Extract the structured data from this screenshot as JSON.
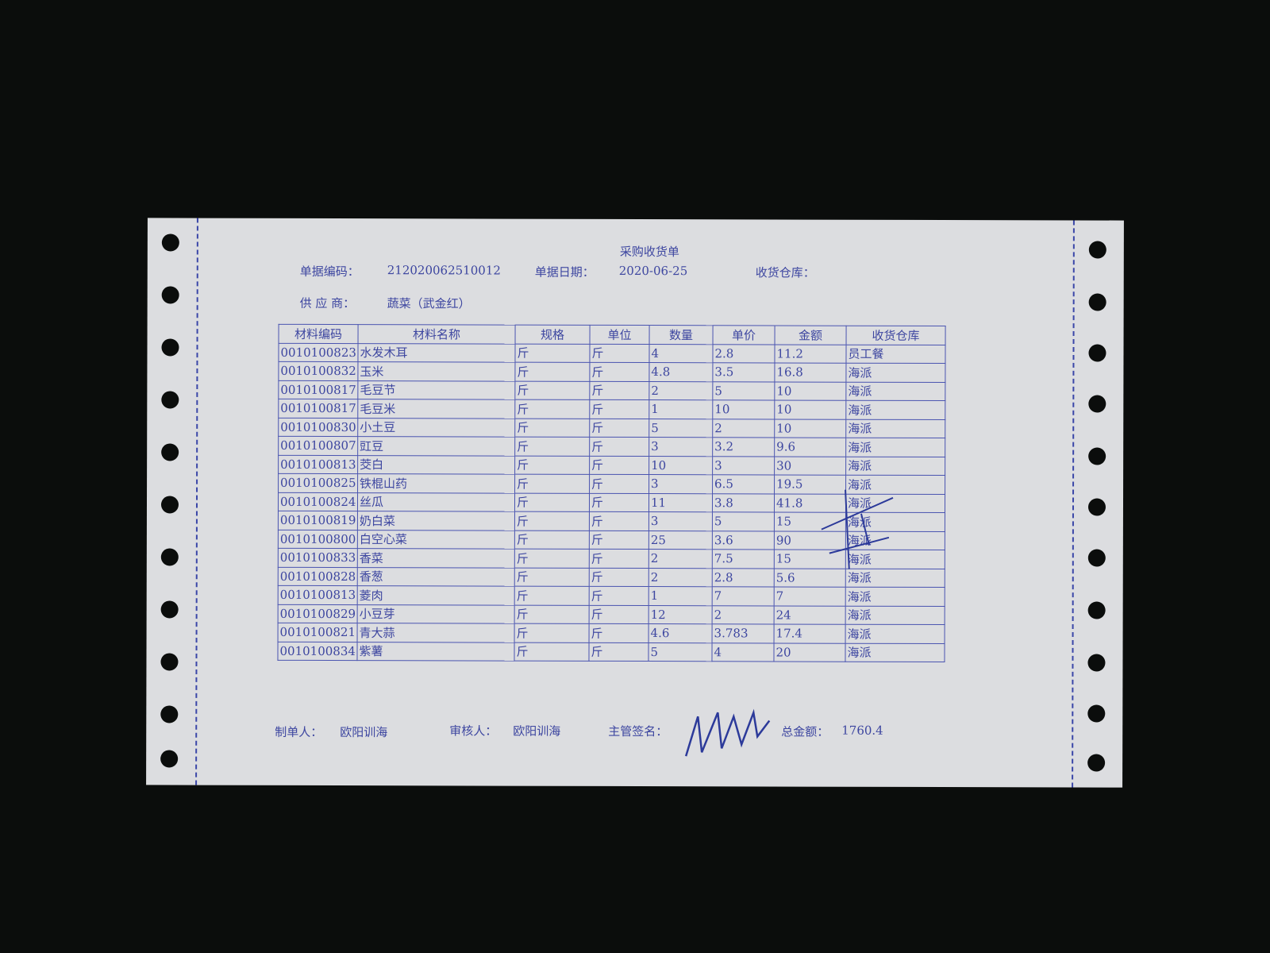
{
  "document": {
    "title": "采购收货单",
    "doc_no_label": "单据编码：",
    "doc_no": "212020062510012",
    "doc_date_label": "单据日期：",
    "doc_date": "2020-06-25",
    "warehouse_label": "收货仓库：",
    "supplier_label": "供 应 商：",
    "supplier": "蔬菜（武金红）"
  },
  "table": {
    "headers": [
      "材料编码",
      "材料名称",
      "规格",
      "单位",
      "数量",
      "单价",
      "金额",
      "收货仓库"
    ],
    "rows": [
      [
        "0010100823",
        "水发木耳",
        "斤",
        "斤",
        "4",
        "2.8",
        "11.2",
        "员工餐"
      ],
      [
        "0010100832",
        "玉米",
        "斤",
        "斤",
        "4.8",
        "3.5",
        "16.8",
        "海派"
      ],
      [
        "0010100817",
        "毛豆节",
        "斤",
        "斤",
        "2",
        "5",
        "10",
        "海派"
      ],
      [
        "0010100817",
        "毛豆米",
        "斤",
        "斤",
        "1",
        "10",
        "10",
        "海派"
      ],
      [
        "0010100830",
        "小土豆",
        "斤",
        "斤",
        "5",
        "2",
        "10",
        "海派"
      ],
      [
        "0010100807",
        "豇豆",
        "斤",
        "斤",
        "3",
        "3.2",
        "9.6",
        "海派"
      ],
      [
        "0010100813",
        "茭白",
        "斤",
        "斤",
        "10",
        "3",
        "30",
        "海派"
      ],
      [
        "0010100825",
        "铁棍山药",
        "斤",
        "斤",
        "3",
        "6.5",
        "19.5",
        "海派"
      ],
      [
        "0010100824",
        "丝瓜",
        "斤",
        "斤",
        "11",
        "3.8",
        "41.8",
        "海派"
      ],
      [
        "0010100819",
        "奶白菜",
        "斤",
        "斤",
        "3",
        "5",
        "15",
        "海派"
      ],
      [
        "0010100800",
        "白空心菜",
        "斤",
        "斤",
        "25",
        "3.6",
        "90",
        "海派"
      ],
      [
        "0010100833",
        "香菜",
        "斤",
        "斤",
        "2",
        "7.5",
        "15",
        "海派"
      ],
      [
        "0010100828",
        "香葱",
        "斤",
        "斤",
        "2",
        "2.8",
        "5.6",
        "海派"
      ],
      [
        "0010100813",
        "菱肉",
        "斤",
        "斤",
        "1",
        "7",
        "7",
        "海派"
      ],
      [
        "0010100829",
        "小豆芽",
        "斤",
        "斤",
        "12",
        "2",
        "24",
        "海派"
      ],
      [
        "0010100821",
        "青大蒜",
        "斤",
        "斤",
        "4.6",
        "3.783",
        "17.4",
        "海派"
      ],
      [
        "0010100834",
        "紫薯",
        "斤",
        "斤",
        "5",
        "4",
        "20",
        "海派"
      ]
    ]
  },
  "footer": {
    "maker_label": "制单人：",
    "maker": "欧阳训海",
    "reviewer_label": "审核人：",
    "reviewer": "欧阳训海",
    "supervisor_label": "主管签名：",
    "total_label": "总金额：",
    "total": "1760.4"
  },
  "colors": {
    "ink": "#3d46a0",
    "paper": "#dcdde0",
    "background": "#0b0d0c"
  }
}
